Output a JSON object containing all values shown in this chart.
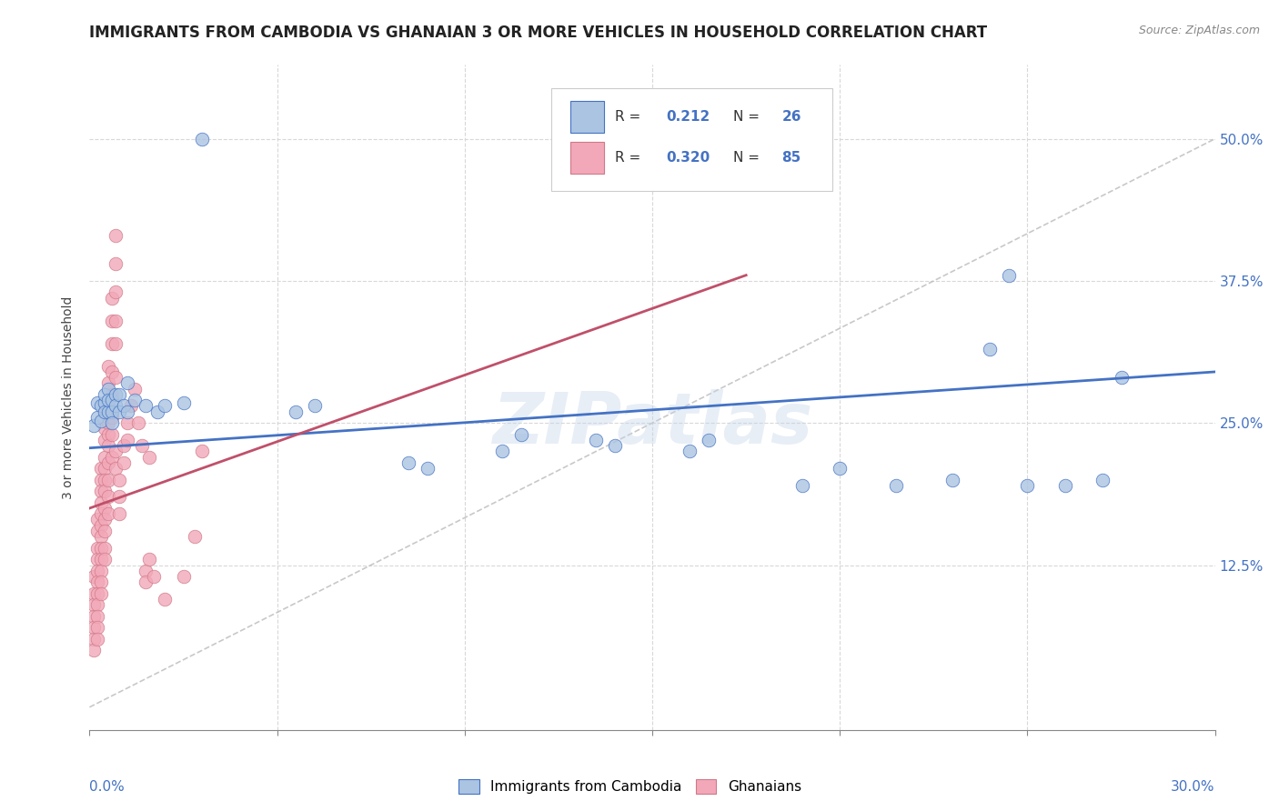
{
  "title": "IMMIGRANTS FROM CAMBODIA VS GHANAIAN 3 OR MORE VEHICLES IN HOUSEHOLD CORRELATION CHART",
  "source": "Source: ZipAtlas.com",
  "ylabel": "3 or more Vehicles in Household",
  "ytick_labels": [
    "50.0%",
    "37.5%",
    "25.0%",
    "12.5%"
  ],
  "ytick_values": [
    0.5,
    0.375,
    0.25,
    0.125
  ],
  "xlim": [
    0.0,
    0.3
  ],
  "ylim": [
    -0.02,
    0.565
  ],
  "watermark": "ZIPatlas",
  "legend_label_cambodia": "Immigrants from Cambodia",
  "legend_label_ghana": "Ghanaians",
  "color_cambodia": "#aac4e2",
  "color_ghana": "#f2a8b8",
  "color_cambodia_line": "#4472c4",
  "color_ghana_line": "#c0506a",
  "background": "#ffffff",
  "grid_color": "#d8d8d8",
  "scatter_cambodia": [
    [
      0.001,
      0.248
    ],
    [
      0.002,
      0.255
    ],
    [
      0.002,
      0.268
    ],
    [
      0.003,
      0.252
    ],
    [
      0.003,
      0.265
    ],
    [
      0.004,
      0.268
    ],
    [
      0.004,
      0.275
    ],
    [
      0.004,
      0.26
    ],
    [
      0.005,
      0.28
    ],
    [
      0.005,
      0.26
    ],
    [
      0.005,
      0.27
    ],
    [
      0.006,
      0.27
    ],
    [
      0.006,
      0.26
    ],
    [
      0.006,
      0.25
    ],
    [
      0.007,
      0.275
    ],
    [
      0.007,
      0.265
    ],
    [
      0.008,
      0.275
    ],
    [
      0.008,
      0.26
    ],
    [
      0.009,
      0.265
    ],
    [
      0.01,
      0.26
    ],
    [
      0.01,
      0.285
    ],
    [
      0.012,
      0.27
    ],
    [
      0.015,
      0.265
    ],
    [
      0.018,
      0.26
    ],
    [
      0.02,
      0.265
    ],
    [
      0.025,
      0.268
    ],
    [
      0.03,
      0.5
    ],
    [
      0.055,
      0.26
    ],
    [
      0.06,
      0.265
    ],
    [
      0.085,
      0.215
    ],
    [
      0.09,
      0.21
    ],
    [
      0.11,
      0.225
    ],
    [
      0.115,
      0.24
    ],
    [
      0.135,
      0.235
    ],
    [
      0.14,
      0.23
    ],
    [
      0.16,
      0.225
    ],
    [
      0.165,
      0.235
    ],
    [
      0.19,
      0.195
    ],
    [
      0.2,
      0.21
    ],
    [
      0.215,
      0.195
    ],
    [
      0.23,
      0.2
    ],
    [
      0.25,
      0.195
    ],
    [
      0.26,
      0.195
    ],
    [
      0.27,
      0.2
    ],
    [
      0.24,
      0.315
    ],
    [
      0.245,
      0.38
    ],
    [
      0.275,
      0.29
    ]
  ],
  "scatter_ghana": [
    [
      0.001,
      0.115
    ],
    [
      0.001,
      0.1
    ],
    [
      0.001,
      0.09
    ],
    [
      0.001,
      0.08
    ],
    [
      0.001,
      0.07
    ],
    [
      0.001,
      0.06
    ],
    [
      0.001,
      0.05
    ],
    [
      0.002,
      0.165
    ],
    [
      0.002,
      0.155
    ],
    [
      0.002,
      0.14
    ],
    [
      0.002,
      0.13
    ],
    [
      0.002,
      0.12
    ],
    [
      0.002,
      0.11
    ],
    [
      0.002,
      0.1
    ],
    [
      0.002,
      0.09
    ],
    [
      0.002,
      0.08
    ],
    [
      0.002,
      0.07
    ],
    [
      0.002,
      0.06
    ],
    [
      0.003,
      0.21
    ],
    [
      0.003,
      0.2
    ],
    [
      0.003,
      0.19
    ],
    [
      0.003,
      0.18
    ],
    [
      0.003,
      0.17
    ],
    [
      0.003,
      0.16
    ],
    [
      0.003,
      0.15
    ],
    [
      0.003,
      0.14
    ],
    [
      0.003,
      0.13
    ],
    [
      0.003,
      0.12
    ],
    [
      0.003,
      0.11
    ],
    [
      0.003,
      0.1
    ],
    [
      0.004,
      0.26
    ],
    [
      0.004,
      0.245
    ],
    [
      0.004,
      0.235
    ],
    [
      0.004,
      0.22
    ],
    [
      0.004,
      0.21
    ],
    [
      0.004,
      0.2
    ],
    [
      0.004,
      0.19
    ],
    [
      0.004,
      0.175
    ],
    [
      0.004,
      0.165
    ],
    [
      0.004,
      0.155
    ],
    [
      0.004,
      0.14
    ],
    [
      0.004,
      0.13
    ],
    [
      0.005,
      0.3
    ],
    [
      0.005,
      0.285
    ],
    [
      0.005,
      0.265
    ],
    [
      0.005,
      0.25
    ],
    [
      0.005,
      0.24
    ],
    [
      0.005,
      0.23
    ],
    [
      0.005,
      0.215
    ],
    [
      0.005,
      0.2
    ],
    [
      0.005,
      0.185
    ],
    [
      0.005,
      0.17
    ],
    [
      0.006,
      0.36
    ],
    [
      0.006,
      0.34
    ],
    [
      0.006,
      0.32
    ],
    [
      0.006,
      0.295
    ],
    [
      0.006,
      0.275
    ],
    [
      0.006,
      0.255
    ],
    [
      0.006,
      0.24
    ],
    [
      0.006,
      0.22
    ],
    [
      0.007,
      0.415
    ],
    [
      0.007,
      0.39
    ],
    [
      0.007,
      0.365
    ],
    [
      0.007,
      0.34
    ],
    [
      0.007,
      0.32
    ],
    [
      0.007,
      0.29
    ],
    [
      0.007,
      0.225
    ],
    [
      0.007,
      0.21
    ],
    [
      0.008,
      0.2
    ],
    [
      0.008,
      0.185
    ],
    [
      0.008,
      0.17
    ],
    [
      0.009,
      0.23
    ],
    [
      0.009,
      0.215
    ],
    [
      0.01,
      0.25
    ],
    [
      0.01,
      0.235
    ],
    [
      0.011,
      0.265
    ],
    [
      0.012,
      0.28
    ],
    [
      0.013,
      0.25
    ],
    [
      0.014,
      0.23
    ],
    [
      0.015,
      0.12
    ],
    [
      0.015,
      0.11
    ],
    [
      0.016,
      0.22
    ],
    [
      0.016,
      0.13
    ],
    [
      0.017,
      0.115
    ],
    [
      0.02,
      0.095
    ],
    [
      0.025,
      0.115
    ],
    [
      0.028,
      0.15
    ],
    [
      0.03,
      0.225
    ]
  ],
  "trendline_cambodia": {
    "x": [
      0.0,
      0.3
    ],
    "y": [
      0.228,
      0.295
    ]
  },
  "trendline_ghana": {
    "x": [
      0.0,
      0.175
    ],
    "y": [
      0.175,
      0.38
    ]
  },
  "diagonal": {
    "x": [
      0.0,
      0.3
    ],
    "y": [
      0.0,
      0.5
    ]
  }
}
